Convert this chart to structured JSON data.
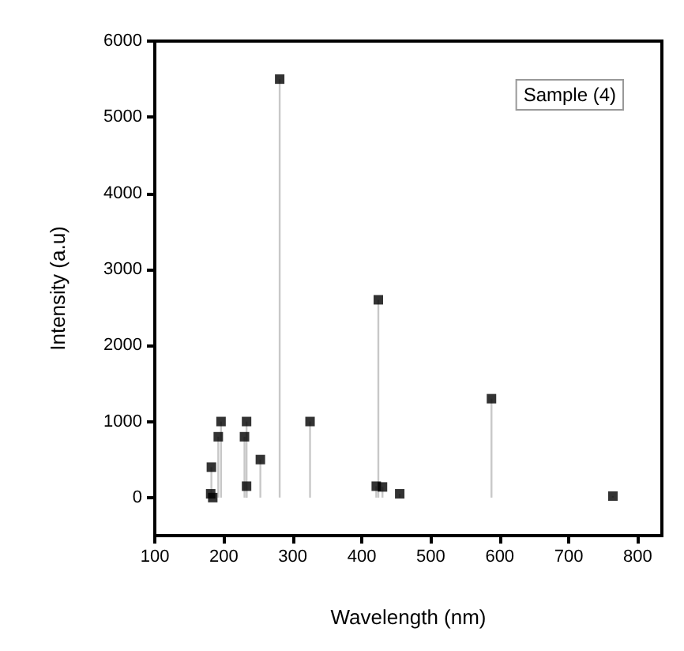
{
  "chart_data": {
    "type": "lollipop",
    "xlabel": "Wavelength (nm)",
    "ylabel": "Intensity (a.u)",
    "annotations": [
      "Sample (4)"
    ],
    "x": [
      181,
      182,
      184,
      192,
      196,
      230,
      233,
      233,
      253,
      281,
      325,
      421,
      424,
      430,
      455,
      588,
      764
    ],
    "values": [
      50,
      400,
      0,
      800,
      1000,
      800,
      150,
      1000,
      500,
      5500,
      1000,
      150,
      2600,
      140,
      50,
      1300,
      20
    ],
    "color": "#000000",
    "marker": "square",
    "grid": false,
    "xlim": [
      100,
      835
    ],
    "xticks": [
      100,
      200,
      300,
      400,
      500,
      600,
      700,
      800
    ],
    "ylim": [
      -500,
      6000
    ],
    "yticks": [
      0,
      1000,
      2000,
      3000,
      4000,
      5000,
      6000
    ]
  }
}
